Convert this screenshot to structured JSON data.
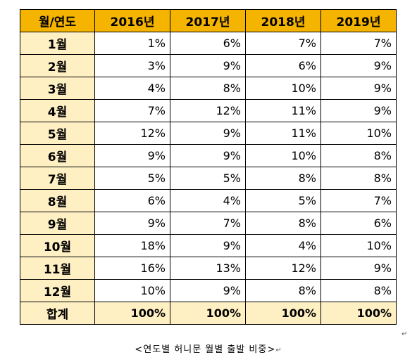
{
  "table": {
    "header": [
      "월/연도",
      "2016년",
      "2017년",
      "2018년",
      "2019년"
    ],
    "rows": [
      {
        "month": "1월",
        "values": [
          "1%",
          "6%",
          "7%",
          "7%"
        ]
      },
      {
        "month": "2월",
        "values": [
          "3%",
          "9%",
          "6%",
          "9%"
        ]
      },
      {
        "month": "3월",
        "values": [
          "4%",
          "8%",
          "10%",
          "9%"
        ]
      },
      {
        "month": "4월",
        "values": [
          "7%",
          "12%",
          "11%",
          "9%"
        ]
      },
      {
        "month": "5월",
        "values": [
          "12%",
          "9%",
          "11%",
          "10%"
        ]
      },
      {
        "month": "6월",
        "values": [
          "9%",
          "9%",
          "10%",
          "8%"
        ]
      },
      {
        "month": "7월",
        "values": [
          "5%",
          "5%",
          "8%",
          "8%"
        ]
      },
      {
        "month": "8월",
        "values": [
          "6%",
          "4%",
          "5%",
          "7%"
        ]
      },
      {
        "month": "9월",
        "values": [
          "9%",
          "7%",
          "8%",
          "6%"
        ]
      },
      {
        "month": "10월",
        "values": [
          "18%",
          "9%",
          "4%",
          "10%"
        ]
      },
      {
        "month": "11월",
        "values": [
          "16%",
          "13%",
          "12%",
          "9%"
        ]
      },
      {
        "month": "12월",
        "values": [
          "10%",
          "9%",
          "8%",
          "8%"
        ]
      }
    ],
    "total": {
      "month": "합계",
      "values": [
        "100%",
        "100%",
        "100%",
        "100%"
      ]
    }
  },
  "caption": "<연도별 허니문 월별 출발 비중>",
  "return_mark": "↵",
  "colors": {
    "header_bg": "#f5b400",
    "month_bg": "#fff0c4",
    "total_bg": "#fff0c4",
    "border": "#000000"
  }
}
